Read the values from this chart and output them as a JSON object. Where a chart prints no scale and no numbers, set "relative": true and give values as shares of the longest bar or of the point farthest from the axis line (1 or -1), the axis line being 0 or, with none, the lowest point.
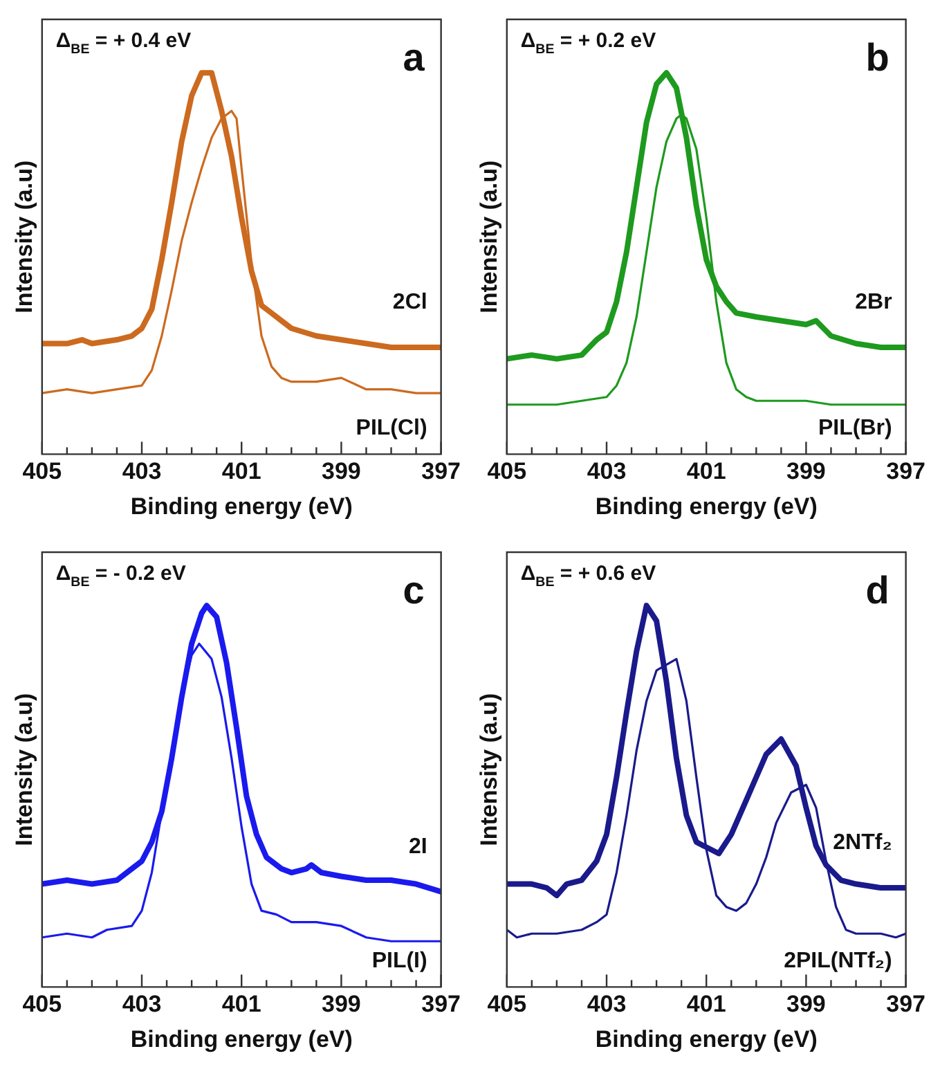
{
  "chart_data": [
    {
      "type": "line",
      "relative": true,
      "xlabel": "Binding energy (eV)",
      "ylabel": "Intensity (a.u)",
      "xlim": [
        405,
        397
      ],
      "xticks": [
        405,
        {
          "value": 404.5,
          "label": null
        },
        {
          "value": 404,
          "label": null
        },
        {
          "value": 403.5,
          "label": null
        },
        403,
        {
          "value": 402.5,
          "label": null
        },
        {
          "value": 402,
          "label": null
        },
        {
          "value": 401.5,
          "label": null
        },
        401,
        {
          "value": 400.5,
          "label": null
        },
        {
          "value": 400,
          "label": null
        },
        {
          "value": 399.5,
          "label": null
        },
        399,
        {
          "value": 398.5,
          "label": null
        },
        {
          "value": 398,
          "label": null
        },
        {
          "value": 397.5,
          "label": null
        },
        397
      ],
      "grid": false,
      "legend": false,
      "marker": "none",
      "line_style": "solid",
      "annotations": [
        "Δ$_{BE}$ = + 0.4 eV",
        "a"
      ],
      "series": [
        {
          "name": "2Cl",
          "color": "#cc6a1f",
          "x": [
            405,
            404.5,
            404.2,
            404,
            403.5,
            403.2,
            403,
            402.8,
            402.6,
            402.4,
            402.2,
            402,
            401.8,
            401.6,
            401.4,
            401.2,
            401,
            400.8,
            400.6,
            400.4,
            400.2,
            400,
            399.5,
            399,
            398.5,
            398,
            397.5,
            397
          ],
          "values": [
            0.29,
            0.29,
            0.3,
            0.29,
            0.3,
            0.31,
            0.33,
            0.38,
            0.51,
            0.66,
            0.82,
            0.94,
            1,
            1,
            0.9,
            0.78,
            0.62,
            0.48,
            0.39,
            0.37,
            0.35,
            0.33,
            0.31,
            0.3,
            0.29,
            0.28,
            0.28,
            0.28
          ]
        },
        {
          "name": "PIL(Cl)",
          "color": "#cc6a1f",
          "x": [
            405,
            404.5,
            404,
            403.5,
            403,
            402.8,
            402.6,
            402.4,
            402.2,
            402,
            401.8,
            401.6,
            401.4,
            401.2,
            401.1,
            401,
            400.8,
            400.6,
            400.4,
            400.2,
            400,
            399.5,
            399,
            398.5,
            398,
            397.5,
            397
          ],
          "values": [
            0.16,
            0.17,
            0.16,
            0.17,
            0.18,
            0.22,
            0.31,
            0.43,
            0.56,
            0.66,
            0.75,
            0.83,
            0.88,
            0.9,
            0.88,
            0.75,
            0.5,
            0.31,
            0.23,
            0.2,
            0.19,
            0.19,
            0.2,
            0.17,
            0.17,
            0.16,
            0.16
          ]
        }
      ]
    },
    {
      "type": "line",
      "relative": true,
      "xlabel": "Binding energy (eV)",
      "ylabel": "Intensity (a.u)",
      "xlim": [
        405,
        397
      ],
      "xticks": [
        405,
        {
          "value": 404.5,
          "label": null
        },
        {
          "value": 404,
          "label": null
        },
        {
          "value": 403.5,
          "label": null
        },
        403,
        {
          "value": 402.5,
          "label": null
        },
        {
          "value": 402,
          "label": null
        },
        {
          "value": 401.5,
          "label": null
        },
        401,
        {
          "value": 400.5,
          "label": null
        },
        {
          "value": 400,
          "label": null
        },
        {
          "value": 399.5,
          "label": null
        },
        399,
        {
          "value": 398.5,
          "label": null
        },
        {
          "value": 398,
          "label": null
        },
        {
          "value": 397.5,
          "label": null
        },
        397
      ],
      "grid": false,
      "legend": false,
      "marker": "none",
      "line_style": "solid",
      "annotations": [
        "Δ$_{BE}$ = + 0.2 eV",
        "b"
      ],
      "series": [
        {
          "name": "2Br",
          "color": "#1e9a1e",
          "x": [
            405,
            404.5,
            404,
            403.5,
            403.2,
            403,
            402.8,
            402.6,
            402.4,
            402.2,
            402,
            401.8,
            401.6,
            401.4,
            401.2,
            401,
            400.8,
            400.6,
            400.4,
            400,
            399.5,
            399,
            398.8,
            398.5,
            398,
            397.5,
            397
          ],
          "values": [
            0.25,
            0.26,
            0.25,
            0.26,
            0.3,
            0.32,
            0.4,
            0.53,
            0.7,
            0.87,
            0.97,
            1,
            0.96,
            0.83,
            0.65,
            0.51,
            0.44,
            0.4,
            0.37,
            0.36,
            0.35,
            0.34,
            0.35,
            0.31,
            0.29,
            0.28,
            0.28
          ]
        },
        {
          "name": "PIL(Br)",
          "color": "#1e9a1e",
          "x": [
            405,
            404,
            403.5,
            403,
            402.8,
            402.6,
            402.4,
            402.2,
            402,
            401.8,
            401.6,
            401.5,
            401.4,
            401.2,
            401,
            400.8,
            400.6,
            400.4,
            400.2,
            400,
            399.5,
            399,
            398.5,
            398,
            397.5,
            397
          ],
          "values": [
            0.13,
            0.13,
            0.14,
            0.15,
            0.18,
            0.24,
            0.36,
            0.53,
            0.7,
            0.82,
            0.88,
            0.89,
            0.88,
            0.8,
            0.62,
            0.4,
            0.24,
            0.17,
            0.15,
            0.14,
            0.14,
            0.14,
            0.13,
            0.13,
            0.13,
            0.13
          ]
        }
      ]
    },
    {
      "type": "line",
      "relative": true,
      "xlabel": "Binding energy (eV)",
      "ylabel": "Intensity (a.u)",
      "xlim": [
        405,
        397
      ],
      "xticks": [
        405,
        {
          "value": 404.5,
          "label": null
        },
        {
          "value": 404,
          "label": null
        },
        {
          "value": 403.5,
          "label": null
        },
        403,
        {
          "value": 402.5,
          "label": null
        },
        {
          "value": 402,
          "label": null
        },
        {
          "value": 401.5,
          "label": null
        },
        401,
        {
          "value": 400.5,
          "label": null
        },
        {
          "value": 400,
          "label": null
        },
        {
          "value": 399.5,
          "label": null
        },
        399,
        {
          "value": 398.5,
          "label": null
        },
        {
          "value": 398,
          "label": null
        },
        {
          "value": 397.5,
          "label": null
        },
        397
      ],
      "grid": false,
      "legend": false,
      "marker": "none",
      "line_style": "solid",
      "annotations": [
        "Δ$_{BE}$ = - 0.2 eV",
        "c"
      ],
      "series": [
        {
          "name": "2I",
          "color": "#1a1aee",
          "x": [
            405,
            404.5,
            404,
            403.5,
            403.2,
            403,
            402.8,
            402.6,
            402.4,
            402.2,
            402,
            401.8,
            401.7,
            401.5,
            401.3,
            401.1,
            400.9,
            400.7,
            400.5,
            400.2,
            400,
            399.7,
            399.6,
            399.4,
            399,
            398.5,
            398,
            397.5,
            397
          ],
          "values": [
            0.27,
            0.28,
            0.27,
            0.28,
            0.31,
            0.33,
            0.38,
            0.46,
            0.6,
            0.76,
            0.9,
            0.98,
            1,
            0.97,
            0.85,
            0.68,
            0.5,
            0.4,
            0.34,
            0.31,
            0.3,
            0.31,
            0.32,
            0.3,
            0.29,
            0.28,
            0.28,
            0.27,
            0.25
          ]
        },
        {
          "name": "PIL(I)",
          "color": "#1a1aee",
          "x": [
            405,
            404.5,
            404,
            403.7,
            403.2,
            403,
            402.8,
            402.6,
            402.4,
            402.2,
            402,
            401.85,
            401.6,
            401.4,
            401.2,
            401,
            400.8,
            400.6,
            400.3,
            400,
            399.5,
            399,
            398.5,
            398,
            397.5,
            397
          ],
          "values": [
            0.13,
            0.14,
            0.13,
            0.15,
            0.16,
            0.2,
            0.3,
            0.46,
            0.62,
            0.76,
            0.87,
            0.9,
            0.86,
            0.76,
            0.6,
            0.42,
            0.27,
            0.2,
            0.19,
            0.17,
            0.17,
            0.16,
            0.13,
            0.12,
            0.12,
            0.12
          ]
        }
      ]
    },
    {
      "type": "line",
      "relative": true,
      "xlabel": "Binding energy (eV)",
      "ylabel": "Intensity (a.u)",
      "xlim": [
        405,
        397
      ],
      "xticks": [
        405,
        {
          "value": 404.5,
          "label": null
        },
        {
          "value": 404,
          "label": null
        },
        {
          "value": 403.5,
          "label": null
        },
        403,
        {
          "value": 402.5,
          "label": null
        },
        {
          "value": 402,
          "label": null
        },
        {
          "value": 401.5,
          "label": null
        },
        401,
        {
          "value": 400.5,
          "label": null
        },
        {
          "value": 400,
          "label": null
        },
        {
          "value": 399.5,
          "label": null
        },
        399,
        {
          "value": 398.5,
          "label": null
        },
        {
          "value": 398,
          "label": null
        },
        {
          "value": 397.5,
          "label": null
        },
        397
      ],
      "grid": false,
      "legend": false,
      "marker": "none",
      "line_style": "solid",
      "annotations": [
        "Δ$_{BE}$ = + 0.6 eV",
        "d"
      ],
      "series": [
        {
          "name": "2NTf₂",
          "color": "#1a1a8c",
          "x": [
            405,
            404.5,
            404.2,
            404,
            403.8,
            403.5,
            403.2,
            403,
            402.8,
            402.6,
            402.4,
            402.2,
            402,
            401.8,
            401.6,
            401.4,
            401.2,
            400.75,
            400.5,
            400.2,
            400,
            399.8,
            399.5,
            399.2,
            399,
            398.8,
            398.6,
            398.3,
            398,
            397.5,
            397
          ],
          "values": [
            0.27,
            0.27,
            0.26,
            0.24,
            0.27,
            0.28,
            0.33,
            0.4,
            0.55,
            0.72,
            0.88,
            1,
            0.96,
            0.8,
            0.6,
            0.45,
            0.38,
            0.35,
            0.4,
            0.49,
            0.55,
            0.61,
            0.65,
            0.58,
            0.47,
            0.37,
            0.32,
            0.28,
            0.27,
            0.26,
            0.26
          ]
        },
        {
          "name": "2PIL(NTf₂)",
          "color": "#1a1a8c",
          "x": [
            405,
            404.8,
            404.5,
            404,
            403.5,
            403.2,
            403,
            402.8,
            402.6,
            402.4,
            402.2,
            402,
            401.6,
            401.4,
            401.2,
            401,
            400.8,
            400.6,
            400.4,
            400.2,
            400,
            399.8,
            399.6,
            399.3,
            399,
            398.8,
            398.6,
            398.4,
            398.2,
            398,
            397.5,
            397.2,
            397
          ],
          "values": [
            0.15,
            0.13,
            0.14,
            0.14,
            0.15,
            0.17,
            0.19,
            0.3,
            0.45,
            0.62,
            0.75,
            0.83,
            0.86,
            0.75,
            0.55,
            0.36,
            0.24,
            0.21,
            0.2,
            0.22,
            0.27,
            0.34,
            0.43,
            0.51,
            0.53,
            0.47,
            0.33,
            0.21,
            0.15,
            0.14,
            0.14,
            0.13,
            0.14
          ]
        }
      ]
    }
  ]
}
